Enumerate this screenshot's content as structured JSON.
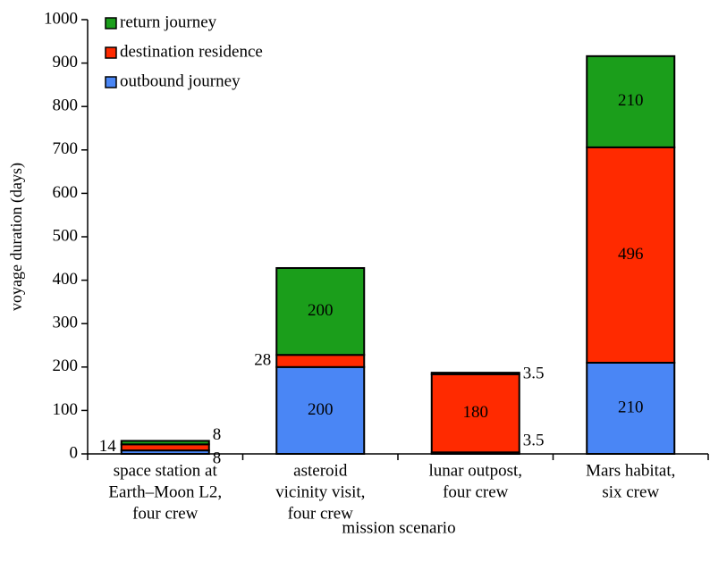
{
  "chart_data": {
    "type": "stacked_bar",
    "x_label": "mission scenario",
    "y_label": "voyage duration (days)",
    "categories": [
      [
        "space station at",
        "Earth–Moon L2,",
        "four crew"
      ],
      [
        "asteroid",
        "vicinity visit,",
        "four crew"
      ],
      [
        "lunar outpost,",
        "four crew"
      ],
      [
        "Mars habitat,",
        "six crew"
      ]
    ],
    "series": [
      {
        "name": "outbound journey",
        "color": "#4a86f5",
        "values": [
          8,
          200,
          3.5,
          210
        ]
      },
      {
        "name": "destination residence",
        "color": "#ff2a00",
        "values": [
          14,
          28,
          180,
          496
        ]
      },
      {
        "name": "return journey",
        "color": "#1b9e1b",
        "values": [
          8,
          200,
          3.5,
          210
        ]
      }
    ],
    "ylim": [
      0,
      1000
    ],
    "yticks": [
      0,
      100,
      200,
      300,
      400,
      500,
      600,
      700,
      800,
      900,
      1000
    ],
    "legend": "upper left"
  }
}
